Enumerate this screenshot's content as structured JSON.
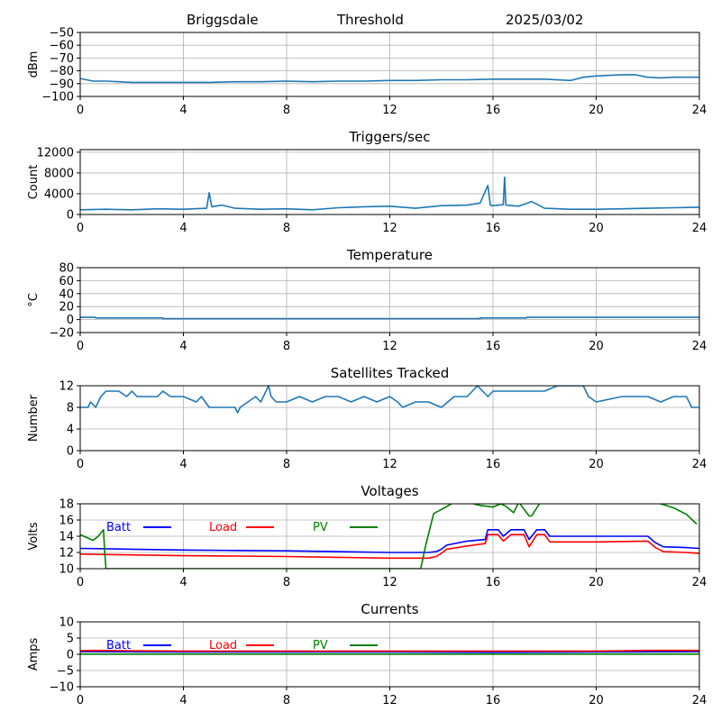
{
  "header": {
    "station": "Briggsdale",
    "mode": "Threshold",
    "date": "2025/03/02"
  },
  "chart_data": [
    {
      "type": "line",
      "title": "",
      "ylabel": "dBm",
      "xlim": [
        0,
        24
      ],
      "xticks": [
        0,
        4,
        8,
        12,
        16,
        20,
        24
      ],
      "ylim": [
        -100,
        -50
      ],
      "yticks": [
        -100,
        -90,
        -80,
        -70,
        -60,
        -50
      ],
      "grid": true,
      "series": [
        {
          "color": "#1f77b4",
          "x": [
            0,
            0.5,
            1,
            2,
            3,
            4,
            5,
            6,
            7,
            8,
            9,
            10,
            11,
            12,
            13,
            14,
            15,
            16,
            17,
            18,
            19,
            19.5,
            20,
            21,
            21.5,
            22,
            22.5,
            23,
            24
          ],
          "y": [
            -86,
            -88,
            -88,
            -89,
            -89,
            -89,
            -89,
            -88.5,
            -88.5,
            -88,
            -88.5,
            -88,
            -88,
            -87.5,
            -87.5,
            -87,
            -87,
            -86.5,
            -86.5,
            -86.5,
            -87.5,
            -85,
            -84,
            -83,
            -83,
            -85,
            -85.5,
            -85,
            -85
          ]
        }
      ]
    },
    {
      "type": "line",
      "title": "Triggers/sec",
      "ylabel": "Count",
      "xlim": [
        0,
        24
      ],
      "xticks": [
        0,
        4,
        8,
        12,
        16,
        20,
        24
      ],
      "ylim": [
        0,
        12500
      ],
      "yticks": [
        0,
        4000,
        8000,
        12000
      ],
      "grid": true,
      "series": [
        {
          "color": "#1f77b4",
          "x": [
            0,
            1,
            2,
            3,
            4,
            4.9,
            5,
            5.1,
            5.5,
            6,
            7,
            8,
            9,
            10,
            11,
            12,
            13,
            14,
            15,
            15.5,
            15.8,
            15.9,
            16,
            16.4,
            16.45,
            16.5,
            17,
            17.5,
            18,
            19,
            20,
            21,
            22,
            23,
            24
          ],
          "y": [
            900,
            1000,
            900,
            1100,
            1000,
            1200,
            4200,
            1500,
            1800,
            1200,
            1000,
            1100,
            900,
            1300,
            1500,
            1600,
            1200,
            1700,
            1800,
            2200,
            5600,
            1800,
            1700,
            1900,
            7200,
            1800,
            1600,
            2500,
            1200,
            1000,
            1000,
            1100,
            1200,
            1300,
            1400
          ]
        }
      ]
    },
    {
      "type": "line",
      "title": "Temperature",
      "ylabel": "°C",
      "xlim": [
        0,
        24
      ],
      "xticks": [
        0,
        4,
        8,
        12,
        16,
        20,
        24
      ],
      "ylim": [
        -20,
        80
      ],
      "yticks": [
        -20,
        0,
        20,
        40,
        60,
        80
      ],
      "grid": true,
      "series": [
        {
          "color": "#1f77b4",
          "x": [
            0,
            0.6,
            0.6,
            3.2,
            3.2,
            15.5,
            15.5,
            17.3,
            17.3,
            24
          ],
          "y": [
            3.5,
            3.5,
            2.5,
            2.5,
            1.5,
            1.5,
            2.5,
            2.5,
            3.5,
            3.5
          ]
        }
      ]
    },
    {
      "type": "line",
      "title": "Satellites Tracked",
      "ylabel": "Number",
      "xlim": [
        0,
        24
      ],
      "xticks": [
        0,
        4,
        8,
        12,
        16,
        20,
        24
      ],
      "ylim": [
        0,
        12
      ],
      "yticks": [
        0,
        4,
        8,
        12
      ],
      "grid": true,
      "series": [
        {
          "color": "#1f77b4",
          "x": [
            0,
            0.3,
            0.4,
            0.6,
            0.8,
            1.0,
            1.5,
            1.8,
            2.0,
            2.2,
            3.0,
            3.2,
            3.5,
            4.0,
            4.5,
            4.7,
            5.0,
            5.5,
            6.0,
            6.1,
            6.2,
            6.5,
            6.8,
            7.0,
            7.2,
            7.3,
            7.4,
            7.6,
            8.0,
            8.5,
            9.0,
            9.5,
            10.0,
            10.5,
            11.0,
            11.5,
            12.0,
            12.3,
            12.5,
            13.0,
            13.5,
            14.0,
            14.5,
            15.0,
            15.2,
            15.4,
            15.6,
            15.8,
            16.0,
            16.5,
            17.0,
            18.0,
            18.5,
            19.0,
            19.5,
            19.7,
            20.0,
            21.0,
            21.5,
            22.0,
            22.5,
            23.0,
            23.5,
            23.7,
            24.0
          ],
          "y": [
            8,
            8,
            9,
            8,
            10,
            11,
            11,
            10,
            11,
            10,
            10,
            11,
            10,
            10,
            9,
            10,
            8,
            8,
            8,
            7,
            8,
            9,
            10,
            9,
            11,
            12,
            10,
            9,
            9,
            10,
            9,
            10,
            10,
            9,
            10,
            9,
            10,
            9,
            8,
            9,
            9,
            8,
            10,
            10,
            11,
            12,
            11,
            10,
            11,
            11,
            11,
            11,
            12,
            12,
            12,
            10,
            9,
            10,
            10,
            10,
            9,
            10,
            10,
            8,
            8
          ]
        }
      ]
    },
    {
      "type": "line",
      "title": "Voltages",
      "ylabel": "Volts",
      "xlim": [
        0,
        24
      ],
      "xticks": [
        0,
        4,
        8,
        12,
        16,
        20,
        24
      ],
      "ylim": [
        10,
        18
      ],
      "yticks": [
        10,
        12,
        14,
        16,
        18
      ],
      "grid": true,
      "legend": "top-left",
      "series": [
        {
          "name": "Batt",
          "color": "#0000ff",
          "x": [
            0,
            2,
            4,
            6,
            8,
            10,
            12,
            13,
            13.5,
            13.8,
            14,
            14.2,
            15,
            15.7,
            15.8,
            16.2,
            16.4,
            16.7,
            17.2,
            17.4,
            17.7,
            18.0,
            18.2,
            20,
            22,
            22.3,
            22.6,
            23.5,
            24
          ],
          "y": [
            12.5,
            12.4,
            12.3,
            12.25,
            12.2,
            12.1,
            12.0,
            12.0,
            12.0,
            12.1,
            12.4,
            12.9,
            13.4,
            13.6,
            14.8,
            14.8,
            14.0,
            14.8,
            14.8,
            13.6,
            14.8,
            14.8,
            14.0,
            14.0,
            14.0,
            13.2,
            12.7,
            12.6,
            12.5
          ]
        },
        {
          "name": "Load",
          "color": "#ff0000",
          "x": [
            0,
            2,
            4,
            6,
            8,
            10,
            12,
            13,
            13.5,
            13.8,
            14,
            14.2,
            15,
            15.7,
            15.8,
            16.2,
            16.4,
            16.7,
            17.2,
            17.4,
            17.7,
            18.0,
            18.2,
            20,
            22,
            22.3,
            22.6,
            23.5,
            24
          ],
          "y": [
            11.8,
            11.7,
            11.6,
            11.55,
            11.5,
            11.4,
            11.3,
            11.3,
            11.3,
            11.5,
            11.9,
            12.4,
            12.8,
            13.1,
            14.2,
            14.2,
            13.4,
            14.2,
            14.2,
            12.7,
            14.2,
            14.2,
            13.3,
            13.3,
            13.4,
            12.6,
            12.1,
            12.0,
            11.9
          ]
        },
        {
          "name": "PV",
          "color": "#008000",
          "x": [
            0,
            0.5,
            0.7,
            0.9,
            0.95,
            1.0,
            13.0,
            13.2,
            13.4,
            13.7,
            14.0,
            14.5,
            15,
            15.5,
            16.0,
            16.3,
            16.5,
            16.8,
            17.0,
            17.4,
            17.5,
            17.8,
            18.0,
            19,
            20,
            21,
            22,
            22.5,
            23.0,
            23.5,
            23.9
          ],
          "y": [
            14.2,
            13.5,
            14.0,
            14.8,
            12.0,
            10.0,
            10.0,
            10.0,
            13.0,
            16.8,
            17.3,
            18.2,
            18.2,
            17.8,
            17.6,
            18.0,
            17.7,
            16.9,
            18.2,
            16.5,
            16.5,
            18.0,
            18.2,
            18.2,
            18.2,
            18.2,
            18.2,
            18.0,
            17.5,
            16.7,
            15.5
          ]
        }
      ]
    },
    {
      "type": "line",
      "title": "Currents",
      "ylabel": "Amps",
      "xlim": [
        0,
        24
      ],
      "xticks": [
        0,
        4,
        8,
        12,
        16,
        20,
        24
      ],
      "ylim": [
        -10,
        10
      ],
      "yticks": [
        -10,
        -5,
        0,
        5,
        10
      ],
      "grid": true,
      "legend": "top-left",
      "series": [
        {
          "name": "Batt",
          "color": "#0000ff",
          "x": [
            0,
            4,
            8,
            12,
            16,
            20,
            24
          ],
          "y": [
            0.8,
            0.7,
            0.7,
            0.7,
            0.6,
            0.7,
            0.8
          ]
        },
        {
          "name": "Load",
          "color": "#ff0000",
          "x": [
            0,
            0.5,
            4,
            8,
            12,
            16,
            20,
            22,
            24
          ],
          "y": [
            1.1,
            1.2,
            1.0,
            1.0,
            1.0,
            1.0,
            1.0,
            1.2,
            1.2
          ]
        },
        {
          "name": "PV",
          "color": "#008000",
          "x": [
            0,
            6,
            12,
            18,
            24
          ],
          "y": [
            0.05,
            0.05,
            0.05,
            0.05,
            0.05
          ]
        }
      ]
    }
  ]
}
